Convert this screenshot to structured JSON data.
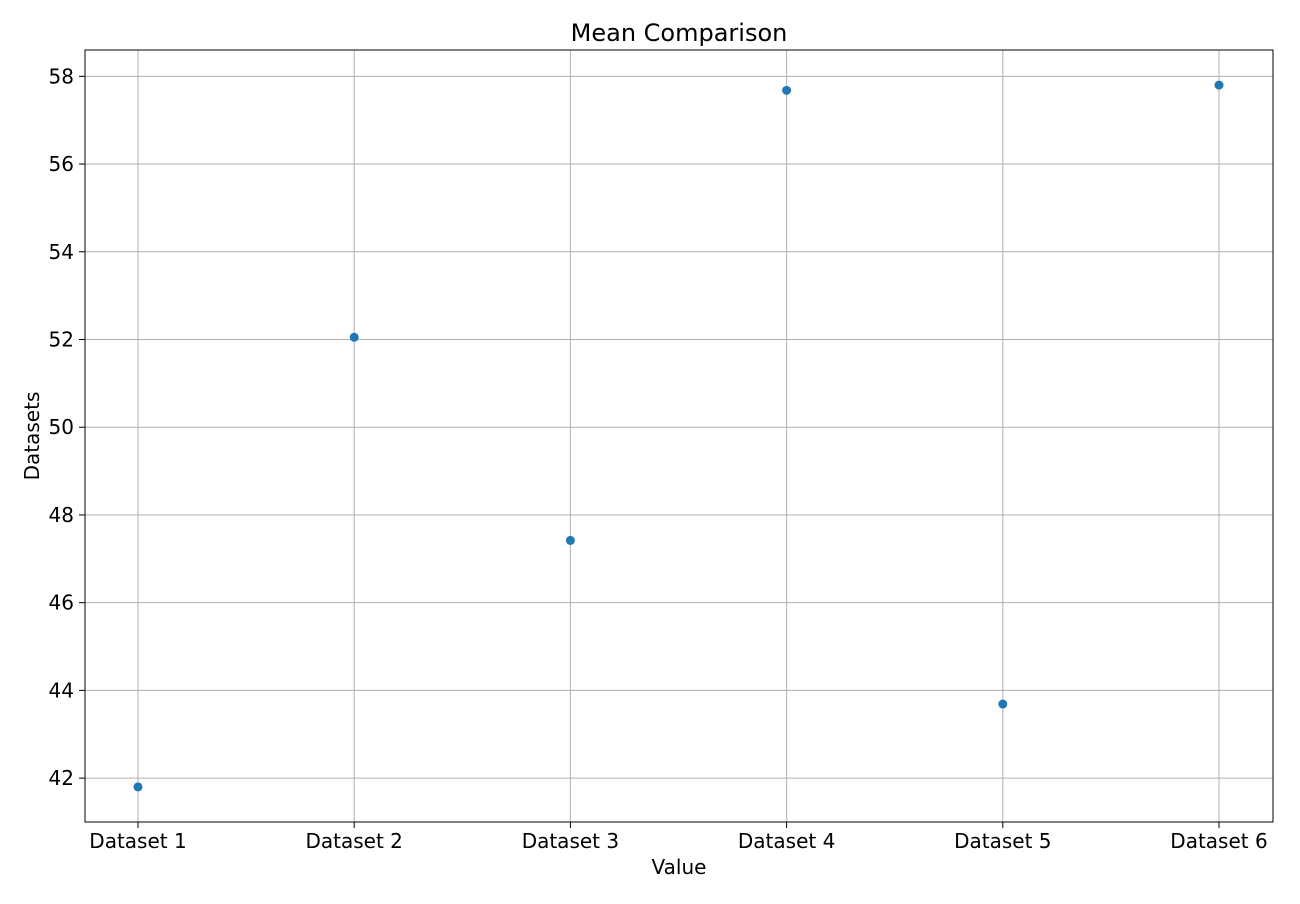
{
  "chart_data": {
    "type": "scatter",
    "title": "Mean Comparison",
    "xlabel": "Value",
    "ylabel": "Datasets",
    "categories": [
      "Dataset 1",
      "Dataset 2",
      "Dataset 3",
      "Dataset 4",
      "Dataset 5",
      "Dataset 6"
    ],
    "values": [
      41.8,
      52.05,
      47.42,
      57.68,
      43.69,
      57.8
    ],
    "ylim": [
      41.0,
      58.6
    ],
    "yticks": [
      42,
      44,
      46,
      48,
      50,
      52,
      54,
      56,
      58
    ],
    "grid": true,
    "point_color": "#1f77b4",
    "grid_color": "#b0b0b0"
  }
}
